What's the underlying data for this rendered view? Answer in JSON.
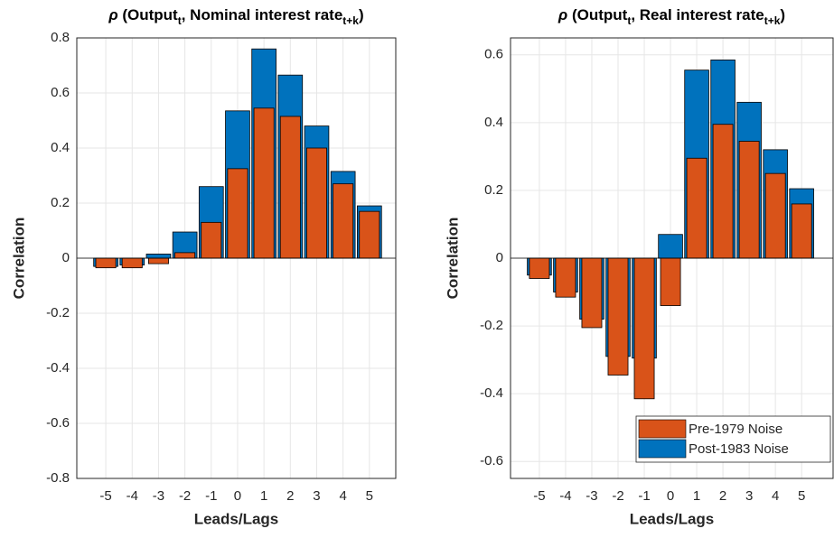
{
  "chart_data": [
    {
      "type": "bar",
      "title_parts": [
        "ρ",
        " (Output",
        "t",
        ", Nominal interest rate",
        "t+k",
        ")"
      ],
      "xlabel": "Leads/Lags",
      "ylabel": "Correlation",
      "x": [
        -5,
        -4,
        -3,
        -2,
        -1,
        0,
        1,
        2,
        3,
        4,
        5
      ],
      "series": [
        {
          "name": "Post-1983 Noise",
          "color": "#0072BD",
          "values": [
            -0.03,
            -0.025,
            0.015,
            0.095,
            0.26,
            0.535,
            0.76,
            0.665,
            0.48,
            0.315,
            0.19
          ]
        },
        {
          "name": "Pre-1979 Noise",
          "color": "#D95319",
          "values": [
            -0.035,
            -0.035,
            -0.02,
            0.02,
            0.13,
            0.325,
            0.545,
            0.515,
            0.4,
            0.27,
            0.17
          ]
        }
      ],
      "xlim": [
        -6.1,
        6
      ],
      "ylim": [
        -0.8,
        0.8
      ],
      "xticks": [
        -5,
        -4,
        -3,
        -2,
        -1,
        0,
        1,
        2,
        3,
        4,
        5
      ],
      "yticks": [
        -0.8,
        -0.6,
        -0.4,
        -0.2,
        0,
        0.2,
        0.4,
        0.6,
        0.8
      ],
      "grid": true,
      "legend": false
    },
    {
      "type": "bar",
      "title_parts": [
        "ρ",
        " (Output",
        "t",
        ", Real interest rate",
        "t+k",
        ")"
      ],
      "xlabel": "Leads/Lags",
      "ylabel": "Correlation",
      "x": [
        -5,
        -4,
        -3,
        -2,
        -1,
        0,
        1,
        2,
        3,
        4,
        5
      ],
      "series": [
        {
          "name": "Post-1983 Noise",
          "color": "#0072BD",
          "values": [
            -0.05,
            -0.1,
            -0.18,
            -0.29,
            -0.295,
            0.07,
            0.555,
            0.585,
            0.46,
            0.32,
            0.205
          ]
        },
        {
          "name": "Pre-1979 Noise",
          "color": "#D95319",
          "values": [
            -0.06,
            -0.115,
            -0.205,
            -0.345,
            -0.415,
            -0.14,
            0.295,
            0.395,
            0.345,
            0.25,
            0.16
          ]
        }
      ],
      "xlim": [
        -6.1,
        6.2
      ],
      "ylim": [
        -0.65,
        0.65
      ],
      "xticks": [
        -5,
        -4,
        -3,
        -2,
        -1,
        0,
        1,
        2,
        3,
        4,
        5
      ],
      "yticks": [
        -0.6,
        -0.4,
        -0.2,
        0,
        0.2,
        0.4,
        0.6
      ],
      "grid": true,
      "legend": "southeast"
    }
  ]
}
